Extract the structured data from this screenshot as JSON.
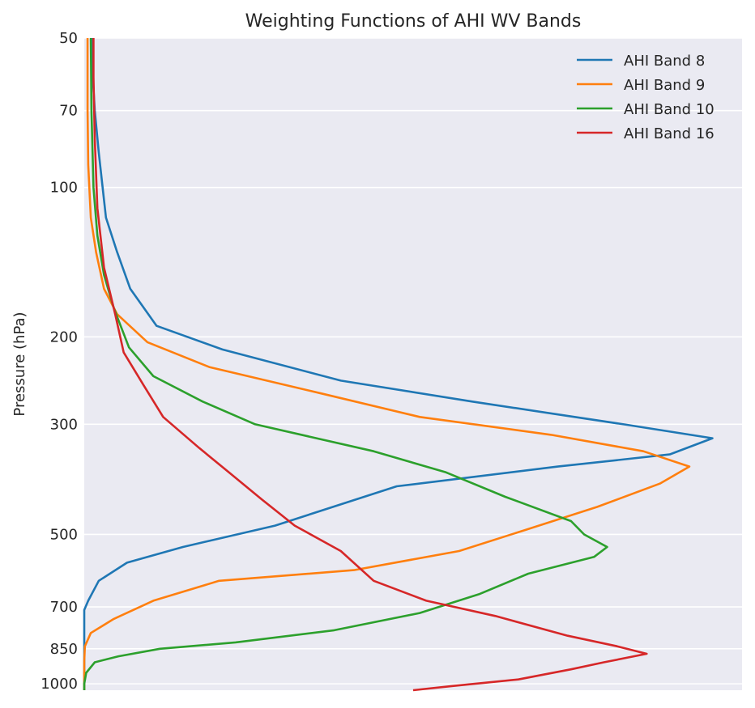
{
  "chart_data": {
    "type": "line",
    "title": "Weighting Functions of AHI WV Bands",
    "xlabel": "",
    "ylabel": "Pressure (hPa)",
    "y_scale": "log",
    "y_inverted": true,
    "ylim": [
      1030,
      50
    ],
    "xlim": [
      0,
      1.0
    ],
    "y_ticks": [
      50,
      70,
      100,
      200,
      300,
      500,
      700,
      850,
      1000
    ],
    "x_ticks": [],
    "grid": true,
    "legend_position": "top-right",
    "background": "#eaeaf2",
    "grid_color": "#ffffff",
    "series": [
      {
        "name": "AHI Band 8",
        "color": "#1f77b4",
        "points": [
          [
            0.012,
            50
          ],
          [
            0.013,
            60
          ],
          [
            0.016,
            70
          ],
          [
            0.022,
            85
          ],
          [
            0.033,
            115
          ],
          [
            0.05,
            135
          ],
          [
            0.07,
            160
          ],
          [
            0.11,
            190
          ],
          [
            0.21,
            212
          ],
          [
            0.39,
            245
          ],
          [
            0.59,
            270
          ],
          [
            0.82,
            300
          ],
          [
            0.955,
            320
          ],
          [
            0.89,
            345
          ],
          [
            0.72,
            365
          ],
          [
            0.475,
            400
          ],
          [
            0.29,
            480
          ],
          [
            0.15,
            530
          ],
          [
            0.065,
            570
          ],
          [
            0.022,
            620
          ],
          [
            0.006,
            680
          ],
          [
            0.0,
            710
          ],
          [
            0.0,
            1030
          ]
        ]
      },
      {
        "name": "AHI Band 9",
        "color": "#ff7f0e",
        "points": [
          [
            0.005,
            50
          ],
          [
            0.005,
            70
          ],
          [
            0.006,
            90
          ],
          [
            0.01,
            115
          ],
          [
            0.018,
            135
          ],
          [
            0.03,
            160
          ],
          [
            0.05,
            180
          ],
          [
            0.096,
            205
          ],
          [
            0.19,
            230
          ],
          [
            0.36,
            260
          ],
          [
            0.51,
            290
          ],
          [
            0.71,
            315
          ],
          [
            0.85,
            340
          ],
          [
            0.92,
            365
          ],
          [
            0.875,
            395
          ],
          [
            0.78,
            440
          ],
          [
            0.67,
            490
          ],
          [
            0.57,
            540
          ],
          [
            0.41,
            590
          ],
          [
            0.205,
            620
          ],
          [
            0.105,
            680
          ],
          [
            0.045,
            740
          ],
          [
            0.01,
            790
          ],
          [
            0.001,
            840
          ],
          [
            0.0,
            900
          ],
          [
            0.0,
            1030
          ]
        ]
      },
      {
        "name": "AHI Band 10",
        "color": "#2ca02c",
        "points": [
          [
            0.01,
            50
          ],
          [
            0.011,
            70
          ],
          [
            0.014,
            100
          ],
          [
            0.02,
            125
          ],
          [
            0.03,
            150
          ],
          [
            0.045,
            175
          ],
          [
            0.068,
            210
          ],
          [
            0.105,
            240
          ],
          [
            0.18,
            270
          ],
          [
            0.26,
            300
          ],
          [
            0.44,
            340
          ],
          [
            0.55,
            375
          ],
          [
            0.64,
            420
          ],
          [
            0.74,
            470
          ],
          [
            0.76,
            500
          ],
          [
            0.795,
            530
          ],
          [
            0.775,
            555
          ],
          [
            0.675,
            600
          ],
          [
            0.6,
            660
          ],
          [
            0.51,
            720
          ],
          [
            0.38,
            780
          ],
          [
            0.23,
            825
          ],
          [
            0.115,
            850
          ],
          [
            0.052,
            880
          ],
          [
            0.016,
            905
          ],
          [
            0.003,
            950
          ],
          [
            0.0,
            1000
          ],
          [
            0.0,
            1030
          ]
        ]
      },
      {
        "name": "AHI Band 16",
        "color": "#d62728",
        "points": [
          [
            0.014,
            50
          ],
          [
            0.014,
            60
          ],
          [
            0.016,
            80
          ],
          [
            0.02,
            110
          ],
          [
            0.03,
            145
          ],
          [
            0.047,
            180
          ],
          [
            0.06,
            215
          ],
          [
            0.09,
            250
          ],
          [
            0.12,
            290
          ],
          [
            0.175,
            335
          ],
          [
            0.22,
            375
          ],
          [
            0.27,
            425
          ],
          [
            0.32,
            480
          ],
          [
            0.39,
            540
          ],
          [
            0.44,
            620
          ],
          [
            0.52,
            680
          ],
          [
            0.625,
            730
          ],
          [
            0.735,
            800
          ],
          [
            0.81,
            840
          ],
          [
            0.855,
            870
          ],
          [
            0.79,
            905
          ],
          [
            0.74,
            935
          ],
          [
            0.66,
            980
          ],
          [
            0.56,
            1010
          ],
          [
            0.5,
            1030
          ]
        ]
      }
    ]
  }
}
